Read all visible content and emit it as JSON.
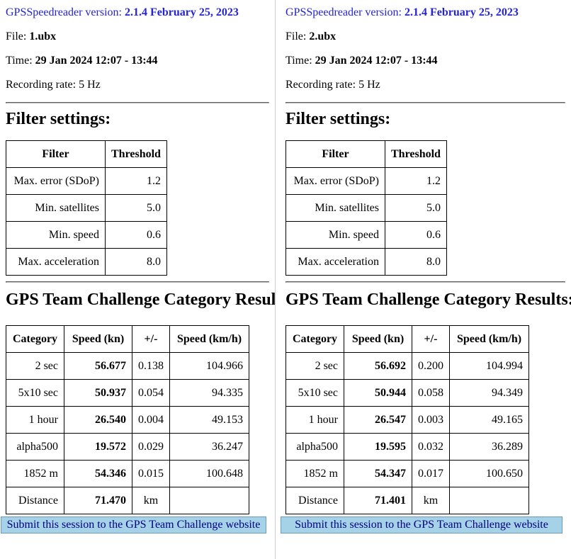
{
  "colors": {
    "accent_blue": "#2424D0",
    "table_border": "#000000",
    "submit_background": "#A6D2E8",
    "submit_border": "#6A9CC0",
    "submit_text": "#000080",
    "panel_divider": "#CCCCCC"
  },
  "panels": [
    {
      "app_label": "GPSSpeedreader version:",
      "app_version": "2.1.4 February 25, 2023",
      "file_label": "File:",
      "file_name": "1.ubx",
      "time_label": "Time:",
      "time_value": "29 Jan 2024 12:07 - 13:44",
      "recording_rate": "Recording rate: 5 Hz",
      "filter_heading": "Filter settings:",
      "filter_table": {
        "headers": [
          "Filter",
          "Threshold"
        ],
        "rows": [
          [
            "Max. error (SDoP)",
            "1.2"
          ],
          [
            "Min. satellites",
            "5.0"
          ],
          [
            "Min. speed",
            "0.6"
          ],
          [
            "Max. acceleration",
            "8.0"
          ]
        ]
      },
      "results_heading": "GPS Team Challenge Category Results:",
      "results_table": {
        "headers": [
          "Category",
          "Speed (kn)",
          "+/-",
          "Speed (km/h)"
        ],
        "rows": [
          [
            "2 sec",
            "56.677",
            "0.138",
            "104.966"
          ],
          [
            "5x10 sec",
            "50.937",
            "0.054",
            "94.335"
          ],
          [
            "1 hour",
            "26.540",
            "0.004",
            "49.153"
          ],
          [
            "alpha500",
            "19.572",
            "0.029",
            "36.247"
          ],
          [
            "1852 m",
            "54.346",
            "0.015",
            "100.648"
          ],
          [
            "Distance",
            "71.470",
            "km",
            ""
          ]
        ]
      },
      "submit_label": "Submit this session to the GPS Team Challenge website"
    },
    {
      "app_label": "GPSSpeedreader version:",
      "app_version": "2.1.4 February 25, 2023",
      "file_label": "File:",
      "file_name": "2.ubx",
      "time_label": "Time:",
      "time_value": "29 Jan 2024 12:07 - 13:44",
      "recording_rate": "Recording rate: 5 Hz",
      "filter_heading": "Filter settings:",
      "filter_table": {
        "headers": [
          "Filter",
          "Threshold"
        ],
        "rows": [
          [
            "Max. error (SDoP)",
            "1.2"
          ],
          [
            "Min. satellites",
            "5.0"
          ],
          [
            "Min. speed",
            "0.6"
          ],
          [
            "Max. acceleration",
            "8.0"
          ]
        ]
      },
      "results_heading": "GPS Team Challenge Category Results:",
      "results_table": {
        "headers": [
          "Category",
          "Speed (kn)",
          "+/-",
          "Speed (km/h)"
        ],
        "rows": [
          [
            "2 sec",
            "56.692",
            "0.200",
            "104.994"
          ],
          [
            "5x10 sec",
            "50.944",
            "0.058",
            "94.349"
          ],
          [
            "1 hour",
            "26.547",
            "0.003",
            "49.165"
          ],
          [
            "alpha500",
            "19.595",
            "0.032",
            "36.289"
          ],
          [
            "1852 m",
            "54.347",
            "0.017",
            "100.650"
          ],
          [
            "Distance",
            "71.401",
            "km",
            ""
          ]
        ]
      },
      "submit_label": "Submit this session to the GPS Team Challenge website"
    }
  ]
}
